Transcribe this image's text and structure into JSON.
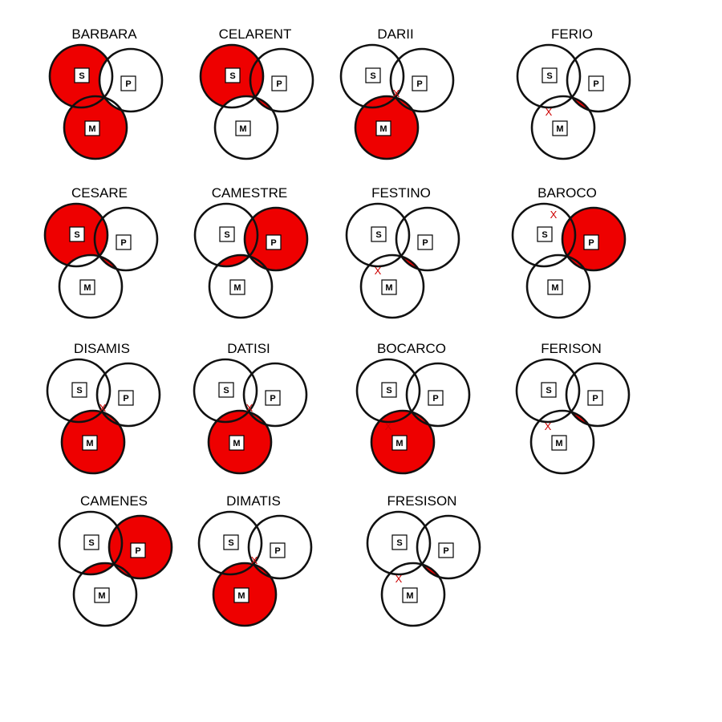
{
  "colors": {
    "fill": "#ee0000",
    "stroke": "#111111",
    "mark": "#cc0000",
    "background": "#ffffff"
  },
  "labels": {
    "s": "S",
    "p": "P",
    "m": "M",
    "mark": "X"
  },
  "diagrams": [
    {
      "name": "BARBARA",
      "shade": [
        "s_only",
        "s_and_m",
        "m_only"
      ],
      "mark": null
    },
    {
      "name": "CELARENT",
      "shade": [
        "s_only",
        "s_and_p",
        "m_p_only"
      ],
      "mark": null
    },
    {
      "name": "DARII",
      "shade": [
        "m_only",
        "m_p_only",
        "s_and_m"
      ],
      "mark": "s_p_m_center"
    },
    {
      "name": "FERIO",
      "shade": [
        "m_p_only",
        "all_three"
      ],
      "mark": "s_and_m"
    },
    {
      "name": "CESARE",
      "shade": [
        "s_only",
        "s_and_p",
        "m_p_only"
      ],
      "mark": null
    },
    {
      "name": "CAMESTRE",
      "shade": [
        "p_only",
        "s_and_p",
        "m_p_only",
        "s_m_only"
      ],
      "mark": null
    },
    {
      "name": "FESTINO",
      "shade": [
        "m_p_only",
        "all_three"
      ],
      "mark": "s_and_m"
    },
    {
      "name": "BAROCO",
      "shade": [
        "p_only",
        "s_and_p",
        "m_p_only",
        "all_three"
      ],
      "mark": "s_top"
    },
    {
      "name": "DISAMIS",
      "shade": [
        "m_only",
        "m_p_only",
        "s_and_m"
      ],
      "mark": "s_p_m_center"
    },
    {
      "name": "DATISI",
      "shade": [
        "m_only",
        "m_p_only",
        "s_and_m"
      ],
      "mark": "s_p_m_center"
    },
    {
      "name": "BOCARCO",
      "shade": [
        "m_only",
        "m_p_only",
        "s_and_m"
      ],
      "mark": "s_and_m"
    },
    {
      "name": "FERISON",
      "shade": [
        "m_p_only",
        "all_three"
      ],
      "mark": "s_and_m"
    },
    {
      "name": "CAMENES",
      "shade": [
        "p_only",
        "s_and_p",
        "m_p_only",
        "s_m_only"
      ],
      "mark": null
    },
    {
      "name": "DIMATIS",
      "shade": [
        "m_only",
        "m_p_only",
        "s_and_m"
      ],
      "mark": "s_p_m_center"
    },
    {
      "name": "FRESISON",
      "shade": [
        "m_p_only",
        "all_three"
      ],
      "mark": "s_and_m"
    }
  ]
}
